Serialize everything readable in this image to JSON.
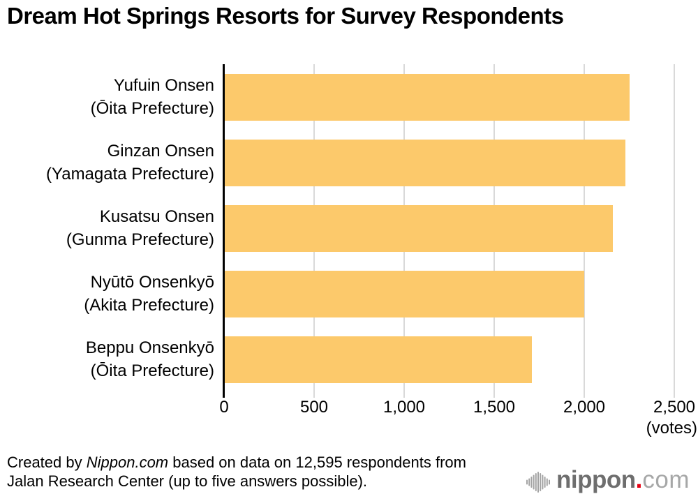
{
  "title": "Dream Hot Springs Resorts for Survey Respondents",
  "chart_data": {
    "type": "bar",
    "orientation": "horizontal",
    "title": "Dream Hot Springs Resorts for Survey Respondents",
    "categories": [
      {
        "line1": "Yufuin Onsen",
        "line2": "(Ōita Prefecture)"
      },
      {
        "line1": "Ginzan Onsen",
        "line2": "(Yamagata Prefecture)"
      },
      {
        "line1": "Kusatsu Onsen",
        "line2": "(Gunma Prefecture)"
      },
      {
        "line1": "Nyūtō Onsenkyō",
        "line2": "(Akita Prefecture)"
      },
      {
        "line1": "Beppu Onsenkyō",
        "line2": "(Ōita Prefecture)"
      }
    ],
    "values": [
      2250,
      2230,
      2160,
      2000,
      1710
    ],
    "xlabel": "(votes)",
    "ylabel": "",
    "xlim": [
      0,
      2500
    ],
    "xticks": [
      0,
      500,
      1000,
      1500,
      2000,
      2500
    ],
    "xtick_labels": [
      "0",
      "500",
      "1,000",
      "1,500",
      "2,000",
      "2,500"
    ],
    "grid": "vertical-gridlines-on",
    "legend": "none",
    "bar_color": "#fcc96b",
    "gridline_color": "#d9d9d9",
    "axis_color": "#000000"
  },
  "footer": {
    "line1": {
      "prefix": "Created by ",
      "italic": "Nippon.com",
      "suffix": " based on data on 12,595 respondents from"
    },
    "line2": "Jalan Research Center (up to five answers possible).",
    "logo": {
      "wordmark": "nippon",
      "dot": ".",
      "tld": "com",
      "wordmark_color": "#6e6e6e",
      "dot_color": "#e60012",
      "tld_color": "#a6a7a7",
      "icon_color": "#a3a3a3"
    }
  }
}
